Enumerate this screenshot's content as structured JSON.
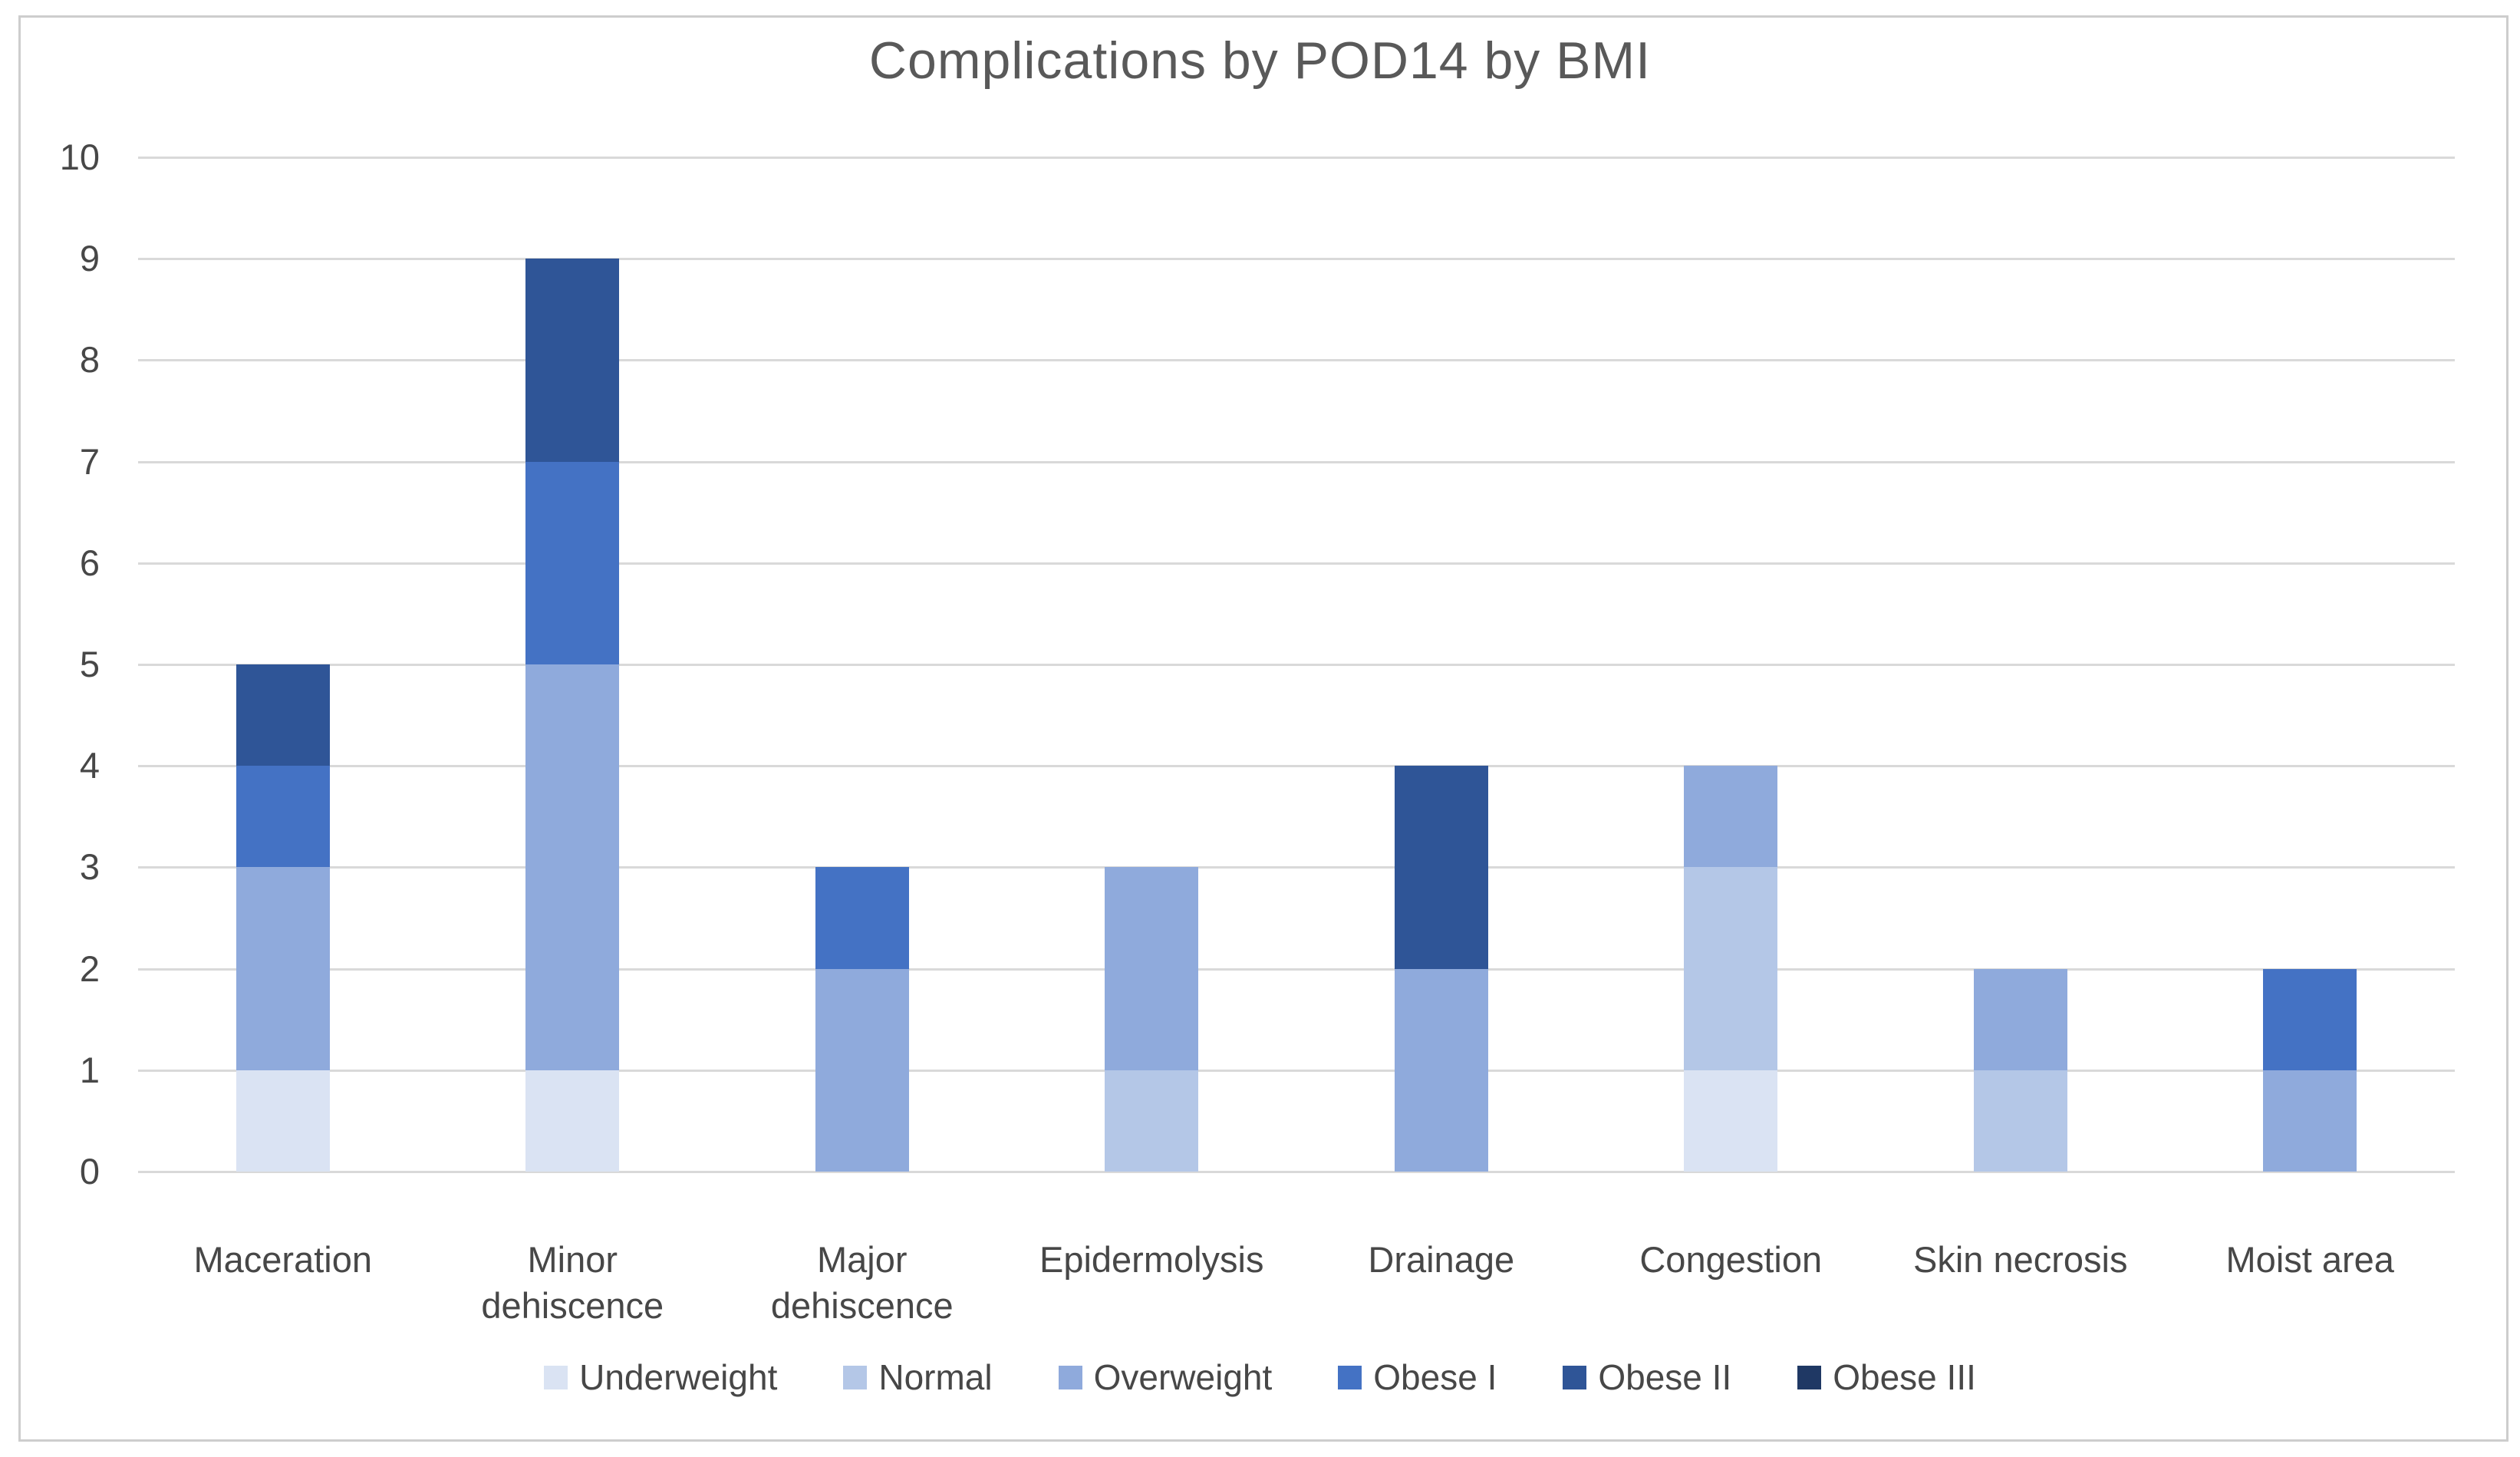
{
  "figure": {
    "background": "#ffffff",
    "border_color": "#cdcdcd"
  },
  "chart_data": {
    "type": "bar",
    "stacked": true,
    "title": "Complications by POD14 by BMI",
    "categories": [
      "Maceration",
      "Minor dehiscence",
      "Major dehiscence",
      "Epidermolysis",
      "Drainage",
      "Congestion",
      "Skin necrosis",
      "Moist area"
    ],
    "series": [
      {
        "name": "Underweight",
        "color": "#dae3f3",
        "values": [
          1,
          1,
          0,
          0,
          0,
          1,
          0,
          0
        ]
      },
      {
        "name": "Normal",
        "color": "#b4c7e7",
        "values": [
          0,
          0,
          0,
          1,
          0,
          2,
          1,
          0
        ]
      },
      {
        "name": "Overweight",
        "color": "#8faadc",
        "values": [
          2,
          4,
          2,
          2,
          2,
          1,
          1,
          1
        ]
      },
      {
        "name": "Obese I",
        "color": "#4472c4",
        "values": [
          1,
          2,
          1,
          0,
          0,
          0,
          0,
          1
        ]
      },
      {
        "name": "Obese II",
        "color": "#2f5597",
        "values": [
          1,
          2,
          0,
          0,
          2,
          0,
          0,
          0
        ]
      },
      {
        "name": "Obese III",
        "color": "#1f3864",
        "values": [
          0,
          0,
          0,
          0,
          0,
          0,
          0,
          0
        ]
      }
    ],
    "totals_by_category": [
      5,
      9,
      3,
      3,
      4,
      4,
      2,
      2
    ],
    "ylim": [
      0,
      10
    ],
    "yticks": [
      "0",
      "1",
      "2",
      "3",
      "4",
      "5",
      "6",
      "7",
      "8",
      "9",
      "10"
    ],
    "grid": true,
    "gridline_color": "#d9d9d9",
    "legend_position": "bottom",
    "legend_labels": [
      "Underweight",
      "Normal",
      "Overweight",
      "Obese I",
      "Obese II",
      "Obese III"
    ],
    "xlabel": "",
    "ylabel": ""
  }
}
